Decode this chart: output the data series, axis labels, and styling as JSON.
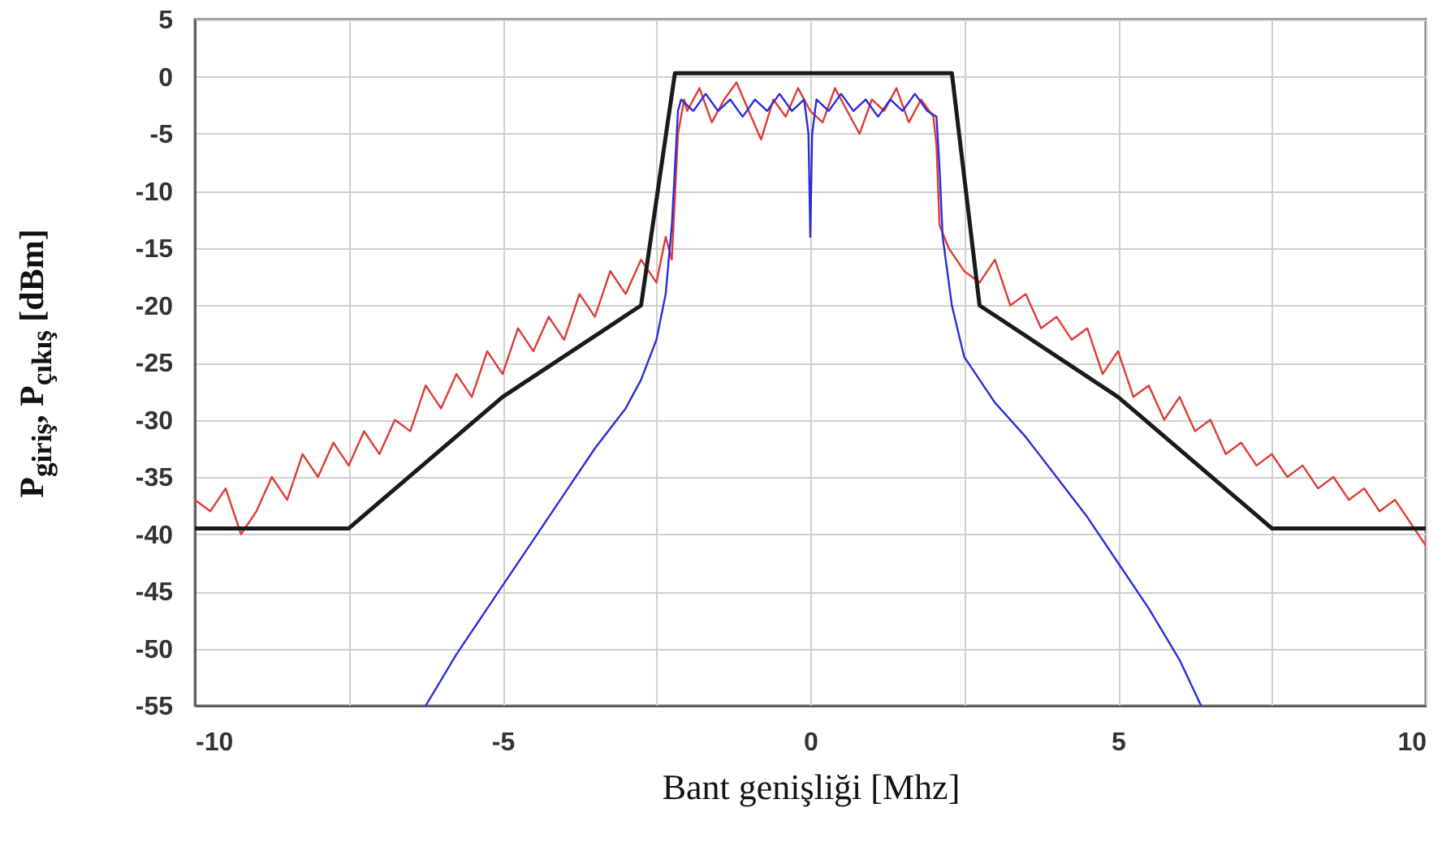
{
  "chart_data": {
    "type": "line",
    "xlabel": "Bant genişliği [Mhz]",
    "ylabel": "P$_{giriş}$, P$_{çıkış}$ [dBm]",
    "xlim": [
      -10,
      10
    ],
    "xticks": [
      -10,
      {
        "value": -7.5,
        "label": null
      },
      -5,
      {
        "value": -2.5,
        "label": null
      },
      0,
      {
        "value": 2.5,
        "label": null
      },
      5,
      {
        "value": 7.5,
        "label": null
      },
      10
    ],
    "ylim": [
      -55,
      5
    ],
    "yticks": [
      -55,
      -50,
      -45,
      -40,
      -35,
      -30,
      -25,
      -20,
      -15,
      -10,
      -5,
      0,
      5
    ],
    "grid": true,
    "line_style": "solid",
    "marker": "none",
    "series": [
      {
        "color": "#e03a36",
        "x": [
          -10,
          -9.75,
          -9.5,
          -9.25,
          -9,
          -8.75,
          -8.5,
          -8.25,
          -8,
          -7.75,
          -7.5,
          -7.25,
          -7,
          -6.75,
          -6.5,
          -6.25,
          -6,
          -5.75,
          -5.5,
          -5.25,
          -5,
          -4.75,
          -4.5,
          -4.25,
          -4,
          -3.75,
          -3.5,
          -3.25,
          -3,
          -2.75,
          -2.5,
          -2.35,
          -2.25,
          -2.15,
          -2.05,
          -2,
          -1.8,
          -1.6,
          -1.4,
          -1.2,
          -1,
          -0.8,
          -0.6,
          -0.4,
          -0.2,
          0,
          0.2,
          0.4,
          0.6,
          0.8,
          1,
          1.2,
          1.4,
          1.6,
          1.8,
          2,
          2.05,
          2.1,
          2.25,
          2.5,
          2.75,
          3,
          3.25,
          3.5,
          3.75,
          4,
          4.25,
          4.5,
          4.75,
          5,
          5.25,
          5.5,
          5.75,
          6,
          6.25,
          6.5,
          6.75,
          7,
          7.25,
          7.5,
          7.75,
          8,
          8.25,
          8.5,
          8.75,
          9,
          9.25,
          9.5,
          9.75,
          10
        ],
        "values": [
          -37,
          -38,
          -36,
          -40,
          -38,
          -35,
          -37,
          -33,
          -35,
          -32,
          -34,
          -31,
          -33,
          -30,
          -31,
          -27,
          -29,
          -26,
          -28,
          -24,
          -26,
          -22,
          -24,
          -21,
          -23,
          -19,
          -21,
          -17,
          -19,
          -16,
          -18,
          -14,
          -16,
          -5,
          -2,
          -3,
          -1,
          -4,
          -2,
          -0.5,
          -3,
          -5.5,
          -2,
          -3.5,
          -1,
          -3,
          -4,
          -1,
          -3,
          -5,
          -2,
          -3,
          -1,
          -4,
          -2,
          -3.5,
          -6,
          -13,
          -15,
          -17,
          -18,
          -16,
          -20,
          -19,
          -22,
          -21,
          -23,
          -22,
          -26,
          -24,
          -28,
          -27,
          -30,
          -28,
          -31,
          -30,
          -33,
          -32,
          -34,
          -33,
          -35,
          -34,
          -36,
          -35,
          -37,
          -36,
          -38,
          -37,
          -39,
          -41
        ]
      },
      {
        "color": "#2b2bd9",
        "x": [
          -6.25,
          -5.75,
          -5.25,
          -5,
          -4.5,
          -4,
          -3.5,
          -3,
          -2.75,
          -2.5,
          -2.35,
          -2.25,
          -2.2,
          -2.15,
          -2.1,
          -1.9,
          -1.7,
          -1.5,
          -1.3,
          -1.1,
          -0.9,
          -0.7,
          -0.5,
          -0.3,
          -0.1,
          -0.03,
          0,
          0.03,
          0.1,
          0.3,
          0.5,
          0.7,
          0.9,
          1.1,
          1.3,
          1.5,
          1.7,
          1.9,
          2.05,
          2.1,
          2.15,
          2.3,
          2.5,
          3,
          3.5,
          4,
          4.5,
          5,
          5.5,
          6,
          6.35
        ],
        "values": [
          -55,
          -50.5,
          -46.5,
          -44.5,
          -40.5,
          -36.5,
          -32.5,
          -29,
          -26.5,
          -23,
          -19,
          -13,
          -8,
          -3,
          -2,
          -3,
          -1.5,
          -3,
          -2,
          -3.5,
          -2,
          -3,
          -1.5,
          -3,
          -2,
          -5,
          -14,
          -5,
          -2,
          -3,
          -1.5,
          -3,
          -2,
          -3.5,
          -2,
          -3,
          -1.5,
          -3,
          -3.5,
          -8,
          -14,
          -20,
          -24.5,
          -28.5,
          -31.5,
          -35,
          -38.5,
          -42.5,
          -46.5,
          -51,
          -55
        ]
      },
      {
        "color": "#1a1a1a",
        "x": [
          -10,
          -7.5,
          -5,
          -2.75,
          -2.2,
          2.3,
          2.75,
          5,
          7.5,
          10
        ],
        "values": [
          -39.5,
          -39.5,
          -28,
          -20,
          0.3,
          0.3,
          -20,
          -28,
          -39.5,
          -39.5
        ]
      }
    ]
  }
}
